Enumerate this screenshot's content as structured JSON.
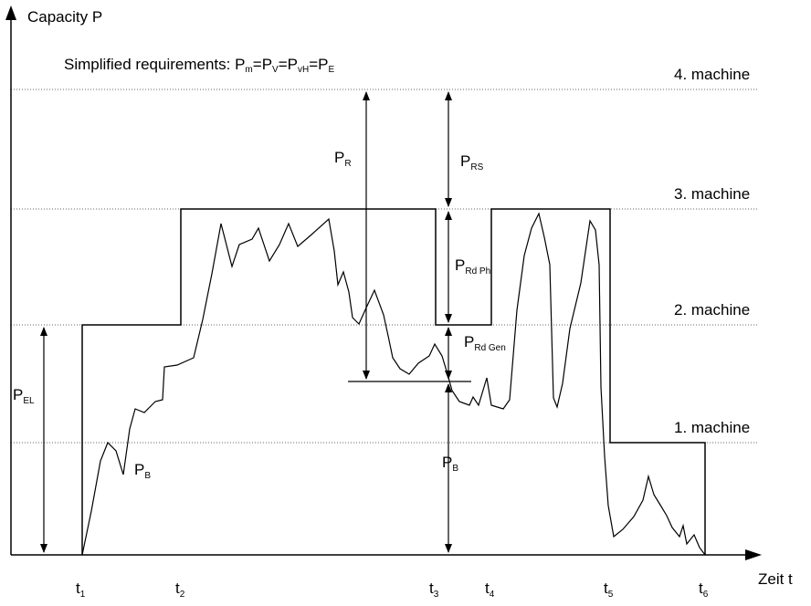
{
  "y_axis_label": "Capacity P",
  "x_axis_label": "Zeit t",
  "requirements": {
    "prefix": "Simplified requirements: P",
    "s1": "m",
    "eq1": "=P",
    "s2": "V",
    "eq2": "=P",
    "s3": "vH",
    "eq3": "=P",
    "s4": "E"
  },
  "machine_levels": [
    {
      "label": "4. machine"
    },
    {
      "label": "3. machine"
    },
    {
      "label": "2. machine"
    },
    {
      "label": "1. machine"
    }
  ],
  "time_marks": [
    {
      "base": "t",
      "sub": "1"
    },
    {
      "base": "t",
      "sub": "2"
    },
    {
      "base": "t",
      "sub": "3"
    },
    {
      "base": "t",
      "sub": "4"
    },
    {
      "base": "t",
      "sub": "5"
    },
    {
      "base": "t",
      "sub": "6"
    }
  ],
  "dimension_labels": {
    "p_r": {
      "base": "P",
      "sub": "R"
    },
    "p_rs": {
      "base": "P",
      "sub": "RS"
    },
    "p_rd_ph": {
      "base": "P",
      "sub": "Rd Ph"
    },
    "p_rd_gen": {
      "base": "P",
      "sub": "Rd Gen"
    },
    "p_el": {
      "base": "P",
      "sub": "EL"
    },
    "p_b_curve": {
      "base": "P",
      "sub": "B"
    },
    "p_b_base": {
      "base": "P",
      "sub": "B"
    }
  }
}
